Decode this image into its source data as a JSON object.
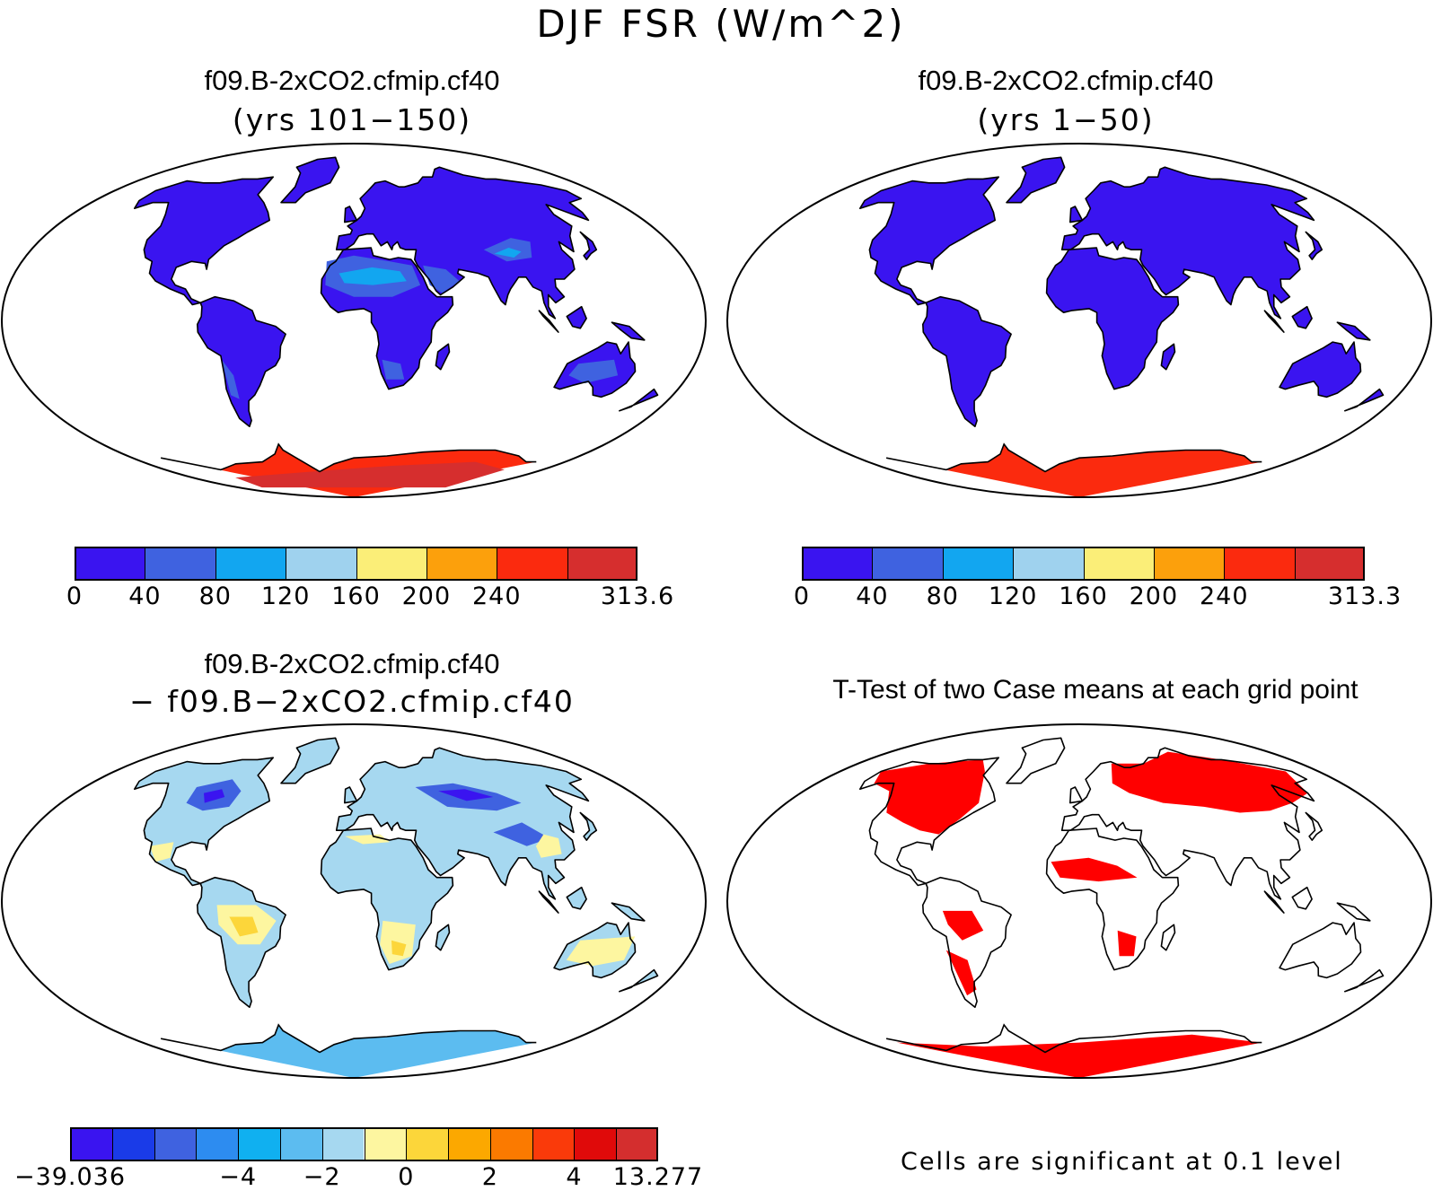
{
  "figure": {
    "title": "DJF FSR (W/m^2)"
  },
  "panels": {
    "p1": {
      "title": "f09.B-2xCO2.cfmip.cf40",
      "subtitle": "(yrs 101−150)"
    },
    "p2": {
      "title": "f09.B-2xCO2.cfmip.cf40",
      "subtitle": "(yrs 1−50)"
    },
    "p3": {
      "title": "f09.B-2xCO2.cfmip.cf40",
      "subtitle": "− f09.B−2xCO2.cfmip.cf40"
    },
    "p4": {
      "title": "T-Test of two Case means at each grid point",
      "note": "Cells are significant at 0.1 level"
    }
  },
  "colorbars": {
    "cb1": {
      "colors": [
        "#3a14f0",
        "#3f62e0",
        "#12a6f0",
        "#9fd2ee",
        "#fbee78",
        "#fca00c",
        "#fb2a0e",
        "#d62e2e"
      ],
      "labels": [
        "0",
        "40",
        "80",
        "120",
        "160",
        "200",
        "240",
        "313.6"
      ],
      "label_positions": [
        0,
        1,
        2,
        3,
        4,
        5,
        6,
        8
      ]
    },
    "cb2": {
      "colors": [
        "#3a14f0",
        "#3f62e0",
        "#12a6f0",
        "#9fd2ee",
        "#fbee78",
        "#fca00c",
        "#fb2a0e",
        "#d62e2e"
      ],
      "labels": [
        "0",
        "40",
        "80",
        "120",
        "160",
        "200",
        "240",
        "313.3"
      ],
      "label_positions": [
        0,
        1,
        2,
        3,
        4,
        5,
        6,
        8
      ]
    },
    "cb3": {
      "colors": [
        "#3a14f0",
        "#1a3be8",
        "#3f62e0",
        "#2d8cf0",
        "#10b0f0",
        "#5cbcf0",
        "#a6d8f0",
        "#fdf6a0",
        "#fcd63a",
        "#fca800",
        "#fb7a00",
        "#fa3a0a",
        "#e00a0a",
        "#d42e2e"
      ],
      "labels": [
        "−39.036",
        "−4",
        "−2",
        "0",
        "2",
        "4",
        "13.277"
      ],
      "label_positions": [
        0,
        4,
        6,
        8,
        10,
        12,
        14
      ]
    }
  },
  "map_colors": {
    "p1": {
      "land": "#3a14f0",
      "mid": "#3f62e0",
      "light": "#12a6f0",
      "antarctica": "#fb2a0e",
      "antarctica_dark": "#d62e2e"
    },
    "p2": {
      "land": "#3a14f0",
      "mid": "#3f62e0",
      "light": "#12a6f0",
      "antarctica": "#fb2a0e",
      "antarctica_dark": "#d62e2e"
    },
    "p3": {
      "land": "#a6d8f0",
      "neg": "#3f62e0",
      "negdeep": "#3a14f0",
      "pos": "#fdf6a0",
      "pos2": "#fcd63a",
      "antarctica": "#5cbcf0"
    },
    "p4": {
      "land": "#ffffff",
      "sig": "#ff0000"
    }
  }
}
